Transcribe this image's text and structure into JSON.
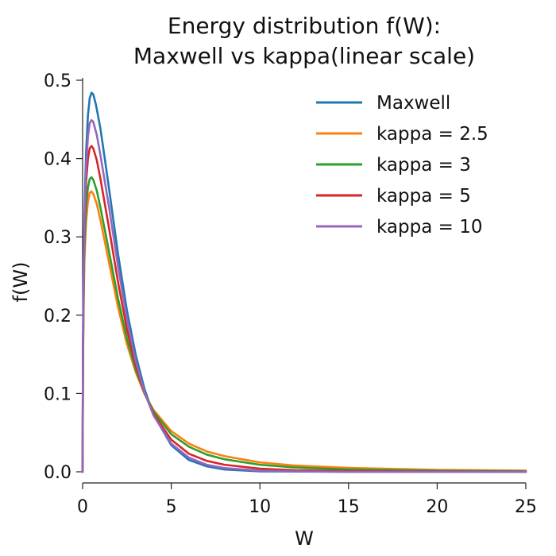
{
  "chart_data": {
    "type": "line",
    "title_line1": "Energy distribution f(W):",
    "title_line2": "Maxwell vs kappa(linear scale)",
    "xlabel": "W",
    "ylabel": "f(W)",
    "xlim": [
      0,
      25
    ],
    "ylim": [
      0,
      0.5
    ],
    "x_ticks": [
      0,
      5,
      10,
      15,
      20,
      25
    ],
    "y_ticks": [
      0.0,
      0.1,
      0.2,
      0.3,
      0.4,
      0.5
    ],
    "x_tick_labels": [
      "0",
      "5",
      "10",
      "15",
      "20",
      "25"
    ],
    "y_tick_labels": [
      "0.0",
      "0.1",
      "0.2",
      "0.3",
      "0.4",
      "0.5"
    ],
    "grid": false,
    "legend_position": "top-right",
    "series": [
      {
        "name": "Maxwell",
        "color": "#1f77b4",
        "points": [
          [
            0,
            0
          ],
          [
            0.02,
            0.155
          ],
          [
            0.05,
            0.24
          ],
          [
            0.1,
            0.32
          ],
          [
            0.15,
            0.37
          ],
          [
            0.2,
            0.41
          ],
          [
            0.3,
            0.455
          ],
          [
            0.4,
            0.477
          ],
          [
            0.5,
            0.484
          ],
          [
            0.6,
            0.482
          ],
          [
            0.75,
            0.469
          ],
          [
            1.0,
            0.439
          ],
          [
            1.25,
            0.4
          ],
          [
            1.5,
            0.36
          ],
          [
            2.0,
            0.278
          ],
          [
            2.5,
            0.206
          ],
          [
            3.0,
            0.149
          ],
          [
            3.5,
            0.105
          ],
          [
            4.0,
            0.073
          ],
          [
            5.0,
            0.034
          ],
          [
            6.0,
            0.015
          ],
          [
            7.0,
            0.007
          ],
          [
            8.0,
            0.003
          ],
          [
            10.0,
            0.0005
          ],
          [
            15.0,
            0.0
          ],
          [
            25.0,
            0.0
          ]
        ]
      },
      {
        "name": "kappa = 2.5",
        "color": "#ff7f0e",
        "points": [
          [
            0,
            0
          ],
          [
            0.02,
            0.13
          ],
          [
            0.05,
            0.2
          ],
          [
            0.1,
            0.27
          ],
          [
            0.2,
            0.32
          ],
          [
            0.3,
            0.345
          ],
          [
            0.4,
            0.356
          ],
          [
            0.5,
            0.358
          ],
          [
            0.6,
            0.355
          ],
          [
            0.8,
            0.342
          ],
          [
            1.0,
            0.322
          ],
          [
            1.5,
            0.266
          ],
          [
            2.0,
            0.21
          ],
          [
            2.5,
            0.163
          ],
          [
            3.0,
            0.127
          ],
          [
            3.5,
            0.099
          ],
          [
            4.0,
            0.079
          ],
          [
            5.0,
            0.052
          ],
          [
            6.0,
            0.036
          ],
          [
            7.0,
            0.026
          ],
          [
            8.0,
            0.02
          ],
          [
            10.0,
            0.012
          ],
          [
            12.0,
            0.008
          ],
          [
            15.0,
            0.005
          ],
          [
            20.0,
            0.0025
          ],
          [
            25.0,
            0.0015
          ]
        ]
      },
      {
        "name": "kappa = 3",
        "color": "#2ca02c",
        "points": [
          [
            0,
            0
          ],
          [
            0.02,
            0.135
          ],
          [
            0.05,
            0.21
          ],
          [
            0.1,
            0.285
          ],
          [
            0.2,
            0.34
          ],
          [
            0.3,
            0.363
          ],
          [
            0.4,
            0.374
          ],
          [
            0.5,
            0.376
          ],
          [
            0.6,
            0.373
          ],
          [
            0.8,
            0.359
          ],
          [
            1.0,
            0.338
          ],
          [
            1.5,
            0.28
          ],
          [
            2.0,
            0.221
          ],
          [
            2.5,
            0.17
          ],
          [
            3.0,
            0.13
          ],
          [
            3.5,
            0.1
          ],
          [
            4.0,
            0.077
          ],
          [
            5.0,
            0.048
          ],
          [
            6.0,
            0.032
          ],
          [
            7.0,
            0.022
          ],
          [
            8.0,
            0.016
          ],
          [
            10.0,
            0.009
          ],
          [
            12.0,
            0.0055
          ],
          [
            15.0,
            0.003
          ],
          [
            20.0,
            0.0014
          ],
          [
            25.0,
            0.0008
          ]
        ]
      },
      {
        "name": "kappa = 5",
        "color": "#d62728",
        "points": [
          [
            0,
            0
          ],
          [
            0.02,
            0.145
          ],
          [
            0.05,
            0.225
          ],
          [
            0.1,
            0.305
          ],
          [
            0.2,
            0.37
          ],
          [
            0.3,
            0.4
          ],
          [
            0.4,
            0.413
          ],
          [
            0.5,
            0.416
          ],
          [
            0.6,
            0.413
          ],
          [
            0.8,
            0.398
          ],
          [
            1.0,
            0.375
          ],
          [
            1.5,
            0.31
          ],
          [
            2.0,
            0.242
          ],
          [
            2.5,
            0.182
          ],
          [
            3.0,
            0.135
          ],
          [
            3.5,
            0.1
          ],
          [
            4.0,
            0.074
          ],
          [
            5.0,
            0.041
          ],
          [
            6.0,
            0.023
          ],
          [
            7.0,
            0.014
          ],
          [
            8.0,
            0.009
          ],
          [
            10.0,
            0.004
          ],
          [
            12.0,
            0.002
          ],
          [
            15.0,
            0.0009
          ],
          [
            20.0,
            0.0003
          ],
          [
            25.0,
            0.0001
          ]
        ]
      },
      {
        "name": "kappa = 10",
        "color": "#9467bd",
        "points": [
          [
            0,
            0
          ],
          [
            0.02,
            0.15
          ],
          [
            0.05,
            0.233
          ],
          [
            0.1,
            0.315
          ],
          [
            0.2,
            0.39
          ],
          [
            0.3,
            0.428
          ],
          [
            0.4,
            0.445
          ],
          [
            0.5,
            0.449
          ],
          [
            0.6,
            0.447
          ],
          [
            0.8,
            0.43
          ],
          [
            1.0,
            0.405
          ],
          [
            1.5,
            0.337
          ],
          [
            2.0,
            0.262
          ],
          [
            2.5,
            0.195
          ],
          [
            3.0,
            0.141
          ],
          [
            3.5,
            0.101
          ],
          [
            4.0,
            0.072
          ],
          [
            5.0,
            0.036
          ],
          [
            6.0,
            0.018
          ],
          [
            7.0,
            0.009
          ],
          [
            8.0,
            0.0048
          ],
          [
            10.0,
            0.0015
          ],
          [
            12.0,
            0.0005
          ],
          [
            15.0,
            0.0001
          ],
          [
            20.0,
            0.0
          ],
          [
            25.0,
            0.0
          ]
        ]
      }
    ]
  }
}
